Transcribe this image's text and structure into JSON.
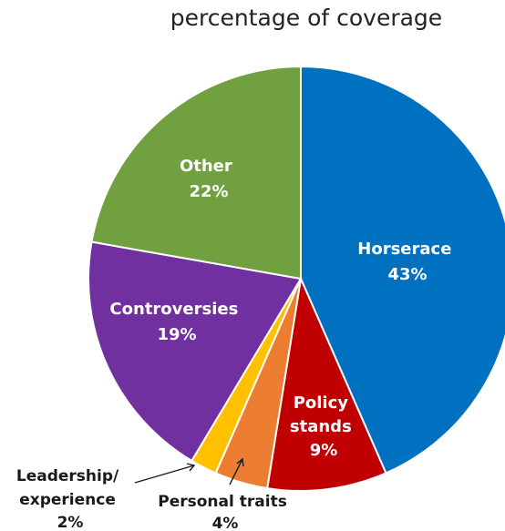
{
  "chart_data": {
    "type": "pie",
    "title": "percentage of coverage",
    "slices": [
      {
        "label": "Horserace",
        "value": 43,
        "value_label": "43%",
        "color": "#0070C0"
      },
      {
        "label": "Policy stands",
        "value": 9,
        "value_label": "9%",
        "color": "#C00000"
      },
      {
        "label": "Personal traits",
        "value": 4,
        "value_label": "4%",
        "color": "#ED7D31"
      },
      {
        "label": "Leadership/ experience",
        "value": 2,
        "value_label": "2%",
        "color": "#FFC000"
      },
      {
        "label": "Controversies",
        "value": 19,
        "value_label": "19%",
        "color": "#7030A0"
      },
      {
        "label": "Other",
        "value": 22,
        "value_label": "22%",
        "color": "#70A040"
      }
    ],
    "label_lines": {
      "horserace": [
        "Horserace",
        "43%"
      ],
      "policy": [
        "Policy",
        "stands",
        "9%"
      ],
      "personal": [
        "Personal traits",
        "4%"
      ],
      "leadership": [
        "Leadership/",
        "experience",
        "2%"
      ],
      "controversies": [
        "Controversies",
        "19%"
      ],
      "other": [
        "Other",
        "22%"
      ]
    }
  }
}
